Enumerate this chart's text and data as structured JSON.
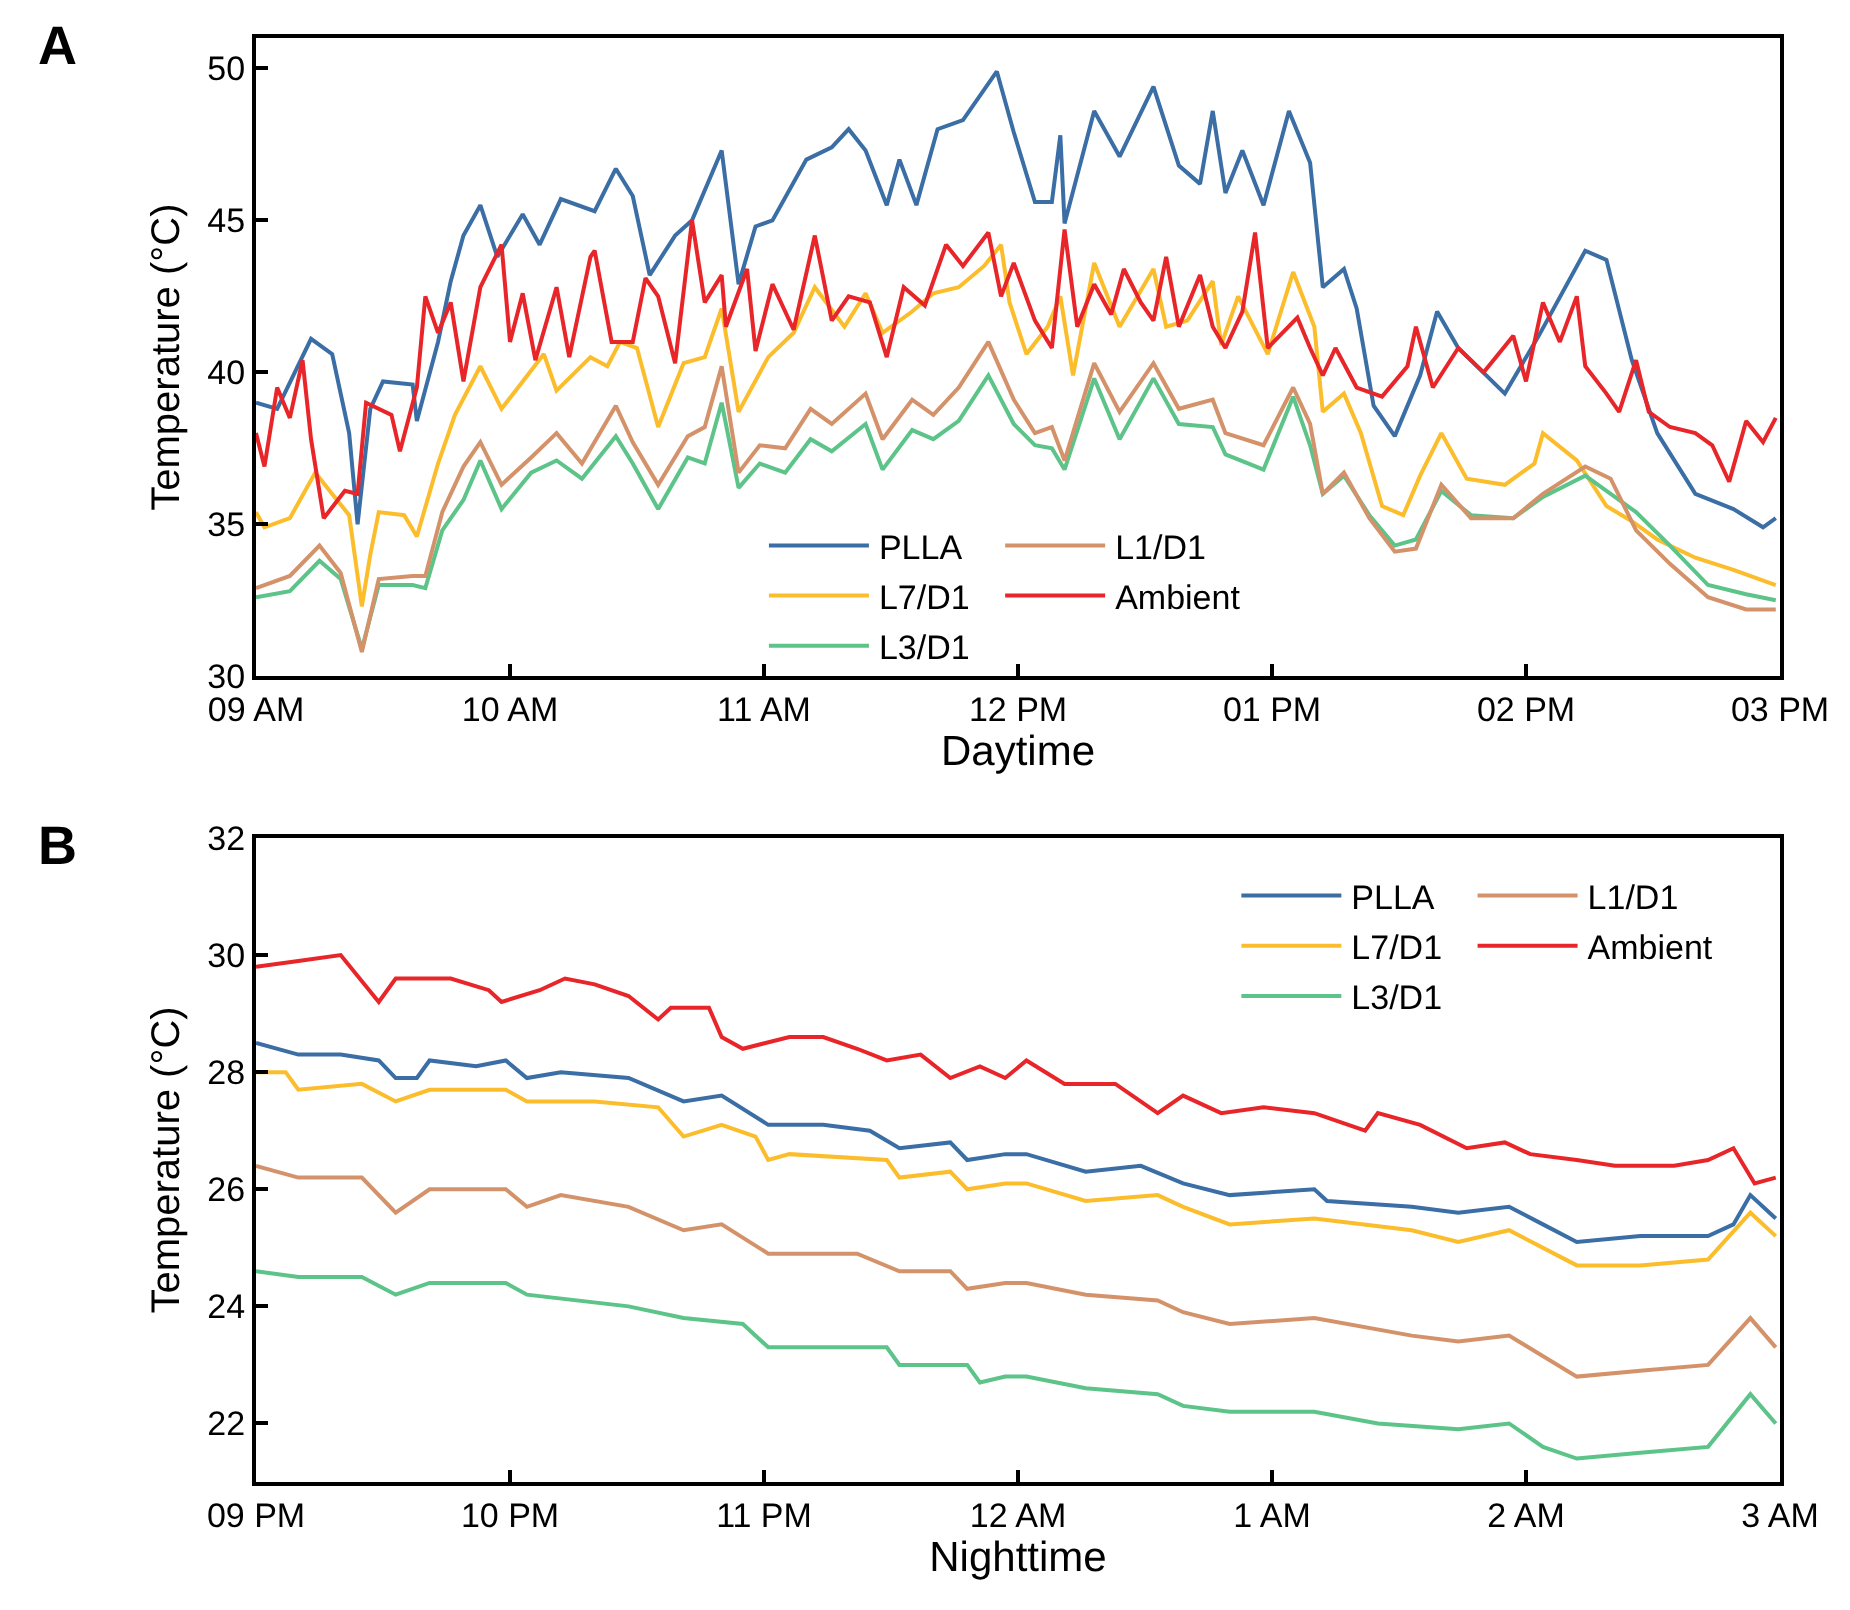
{
  "chart_data": [
    {
      "type": "line",
      "title": "A",
      "xlabel": "Daytime",
      "ylabel": "Temperature (°C)",
      "xlim": [
        "--01-01T09:00",
        "--01-01T15:00"
      ],
      "ylim": [
        30,
        51
      ],
      "xticks": [
        {
          "value": "--01-01T09:00",
          "label": "09 AM"
        },
        {
          "value": "--01-01T10:00",
          "label": "10 AM"
        },
        {
          "value": "--01-01T11:00",
          "label": "11 AM"
        },
        {
          "value": "--01-01T12:00",
          "label": "12 PM"
        },
        {
          "value": "--01-01T13:00",
          "label": "01 PM"
        },
        {
          "value": "--01-01T14:00",
          "label": "02 PM"
        },
        {
          "value": "--01-01T15:00",
          "label": "03 PM"
        }
      ],
      "yticks": [
        30,
        35,
        40,
        45,
        50
      ],
      "legend": "bottom",
      "series": [
        {
          "name": "PLLA",
          "color": "#3a6ea5",
          "x": [
            "--01-01T09:00",
            "--01-01T09:05",
            "--01-01T09:13",
            "--01-01T09:18",
            "--01-01T09:22",
            "--01-01T09:24",
            "--01-01T09:27",
            "--01-01T09:30",
            "--01-01T09:37",
            "--01-01T09:38",
            "--01-01T09:43",
            "--01-01T09:46",
            "--01-01T09:49",
            "--01-01T09:53",
            "--01-01T09:57",
            "--01-01T10:03",
            "--01-01T10:07",
            "--01-01T10:12",
            "--01-01T10:20",
            "--01-01T10:25",
            "--01-01T10:29",
            "--01-01T10:33",
            "--01-01T10:39",
            "--01-01T10:43",
            "--01-01T10:50",
            "--01-01T10:54",
            "--01-01T10:58",
            "--01-01T11:02",
            "--01-01T11:10",
            "--01-01T11:16",
            "--01-01T11:20",
            "--01-01T11:24",
            "--01-01T11:29",
            "--01-01T11:32",
            "--01-01T11:36",
            "--01-01T11:41",
            "--01-01T11:47",
            "--01-01T11:55",
            "--01-01T11:59",
            "--01-01T12:04",
            "--01-01T12:08",
            "--01-01T12:10",
            "--01-01T12:11",
            "--01-01T12:18",
            "--01-01T12:24",
            "--01-01T12:32",
            "--01-01T12:38",
            "--01-01T12:43",
            "--01-01T12:46",
            "--01-01T12:49",
            "--01-01T12:53",
            "--01-01T12:58",
            "--01-01T13:04",
            "--01-01T13:09",
            "--01-01T13:12",
            "--01-01T13:17",
            "--01-01T13:20",
            "--01-01T13:24",
            "--01-01T13:29",
            "--01-01T13:35",
            "--01-01T13:39",
            "--01-01T13:44",
            "--01-01T13:55",
            "--01-01T14:03",
            "--01-01T14:14",
            "--01-01T14:19",
            "--01-01T14:25",
            "--01-01T14:31",
            "--01-01T14:40",
            "--01-01T14:49",
            "--01-01T14:56",
            "--01-01T14:59"
          ],
          "values": [
            39.0,
            38.8,
            41.1,
            40.6,
            38.0,
            35.0,
            38.8,
            39.7,
            39.6,
            38.4,
            41.0,
            43.0,
            44.5,
            45.5,
            43.8,
            45.2,
            44.2,
            45.7,
            45.3,
            46.7,
            45.8,
            43.2,
            44.5,
            45.0,
            47.3,
            42.9,
            44.8,
            45.0,
            47.0,
            47.4,
            48.0,
            47.3,
            45.5,
            47.0,
            45.5,
            48.0,
            48.3,
            49.9,
            47.9,
            45.6,
            45.6,
            47.8,
            44.9,
            48.6,
            47.1,
            49.4,
            46.8,
            46.2,
            48.6,
            45.9,
            47.3,
            45.5,
            48.6,
            46.9,
            42.8,
            43.4,
            42.1,
            38.9,
            37.9,
            39.9,
            42.0,
            40.8,
            39.3,
            41.2,
            44.0,
            43.7,
            40.4,
            38.0,
            36.0,
            35.5,
            34.9,
            35.2
          ]
        },
        {
          "name": "L7/D1",
          "color": "#fbbd2b",
          "x": [
            "--01-01T09:00",
            "--01-01T09:02",
            "--01-01T09:08",
            "--01-01T09:14",
            "--01-01T09:18",
            "--01-01T09:22",
            "--01-01T09:25",
            "--01-01T09:27",
            "--01-01T09:29",
            "--01-01T09:35",
            "--01-01T09:38",
            "--01-01T09:43",
            "--01-01T09:47",
            "--01-01T09:53",
            "--01-01T09:58",
            "--01-01T10:03",
            "--01-01T10:08",
            "--01-01T10:11",
            "--01-01T10:19",
            "--01-01T10:23",
            "--01-01T10:26",
            "--01-01T10:30",
            "--01-01T10:35",
            "--01-01T10:41",
            "--01-01T10:46",
            "--01-01T10:50",
            "--01-01T10:54",
            "--01-01T11:01",
            "--01-01T11:07",
            "--01-01T11:12",
            "--01-01T11:19",
            "--01-01T11:24",
            "--01-01T11:28",
            "--01-01T11:35",
            "--01-01T11:40",
            "--01-01T11:46",
            "--01-01T11:52",
            "--01-01T11:56",
            "--01-01T11:58",
            "--01-01T12:02",
            "--01-01T12:07",
            "--01-01T12:10",
            "--01-01T12:13",
            "--01-01T12:18",
            "--01-01T12:24",
            "--01-01T12:32",
            "--01-01T12:35",
            "--01-01T12:40",
            "--01-01T12:46",
            "--01-01T12:48",
            "--01-01T12:52",
            "--01-01T12:59",
            "--01-01T13:05",
            "--01-01T13:10",
            "--01-01T13:12",
            "--01-01T13:17",
            "--01-01T13:21",
            "--01-01T13:26",
            "--01-01T13:31",
            "--01-01T13:35",
            "--01-01T13:40",
            "--01-01T13:46",
            "--01-01T13:55",
            "--01-01T14:02",
            "--01-01T14:04",
            "--01-01T14:12",
            "--01-01T14:19",
            "--01-01T14:25",
            "--01-01T14:31",
            "--01-01T14:40",
            "--01-01T14:49",
            "--01-01T14:59"
          ],
          "values": [
            35.4,
            34.9,
            35.2,
            36.7,
            36.0,
            35.3,
            32.3,
            34.0,
            35.4,
            35.3,
            34.6,
            37.0,
            38.6,
            40.2,
            38.8,
            39.7,
            40.6,
            39.4,
            40.5,
            40.2,
            41.0,
            40.8,
            38.2,
            40.3,
            40.5,
            42.1,
            38.7,
            40.5,
            41.3,
            42.8,
            41.5,
            42.6,
            41.3,
            42.0,
            42.6,
            42.8,
            43.5,
            44.2,
            42.3,
            40.6,
            41.5,
            42.5,
            39.9,
            43.6,
            41.5,
            43.4,
            41.5,
            41.7,
            43.0,
            40.9,
            42.5,
            40.6,
            43.3,
            41.5,
            38.7,
            39.3,
            38.0,
            35.6,
            35.3,
            36.6,
            38.0,
            36.5,
            36.3,
            37.0,
            38.0,
            37.1,
            35.6,
            35.1,
            34.5,
            33.9,
            33.5,
            33.0
          ]
        },
        {
          "name": "L3/D1",
          "color": "#5cc389",
          "x": [
            "--01-01T09:00",
            "--01-01T09:08",
            "--01-01T09:15",
            "--01-01T09:20",
            "--01-01T09:25",
            "--01-01T09:29",
            "--01-01T09:37",
            "--01-01T09:40",
            "--01-01T09:44",
            "--01-01T09:49",
            "--01-01T09:53",
            "--01-01T09:58",
            "--01-01T10:05",
            "--01-01T10:11",
            "--01-01T10:17",
            "--01-01T10:25",
            "--01-01T10:29",
            "--01-01T10:35",
            "--01-01T10:42",
            "--01-01T10:46",
            "--01-01T10:50",
            "--01-01T10:54",
            "--01-01T10:59",
            "--01-01T11:05",
            "--01-01T11:11",
            "--01-01T11:16",
            "--01-01T11:24",
            "--01-01T11:28",
            "--01-01T11:35",
            "--01-01T11:40",
            "--01-01T11:46",
            "--01-01T11:53",
            "--01-01T11:59",
            "--01-01T12:04",
            "--01-01T12:08",
            "--01-01T12:11",
            "--01-01T12:18",
            "--01-01T12:24",
            "--01-01T12:32",
            "--01-01T12:38",
            "--01-01T12:46",
            "--01-01T12:49",
            "--01-01T12:58",
            "--01-01T13:05",
            "--01-01T13:09",
            "--01-01T13:12",
            "--01-01T13:17",
            "--01-01T13:23",
            "--01-01T13:29",
            "--01-01T13:34",
            "--01-01T13:40",
            "--01-01T13:47",
            "--01-01T13:57",
            "--01-01T14:04",
            "--01-01T14:14",
            "--01-01T14:20",
            "--01-01T14:26",
            "--01-01T14:34",
            "--01-01T14:43",
            "--01-01T14:52",
            "--01-01T14:59"
          ],
          "values": [
            32.6,
            32.8,
            33.8,
            33.2,
            30.9,
            33.0,
            33.0,
            32.9,
            34.8,
            35.8,
            37.1,
            35.5,
            36.7,
            37.1,
            36.5,
            37.9,
            37.0,
            35.5,
            37.2,
            37.0,
            39.0,
            36.2,
            37.0,
            36.7,
            37.8,
            37.4,
            38.3,
            36.8,
            38.1,
            37.8,
            38.4,
            39.9,
            38.3,
            37.6,
            37.5,
            36.8,
            39.8,
            37.8,
            39.8,
            38.3,
            38.2,
            37.3,
            36.8,
            39.2,
            37.6,
            36.0,
            36.6,
            35.3,
            34.3,
            34.5,
            36.1,
            35.3,
            35.2,
            35.9,
            36.6,
            36.0,
            35.4,
            34.3,
            33.0,
            32.7,
            32.5
          ]
        },
        {
          "name": "L1/D1",
          "color": "#d4926a",
          "x": [
            "--01-01T09:00",
            "--01-01T09:08",
            "--01-01T09:15",
            "--01-01T09:20",
            "--01-01T09:25",
            "--01-01T09:29",
            "--01-01T09:37",
            "--01-01T09:40",
            "--01-01T09:44",
            "--01-01T09:49",
            "--01-01T09:53",
            "--01-01T09:58",
            "--01-01T10:05",
            "--01-01T10:11",
            "--01-01T10:17",
            "--01-01T10:25",
            "--01-01T10:29",
            "--01-01T10:35",
            "--01-01T10:42",
            "--01-01T10:46",
            "--01-01T10:50",
            "--01-01T10:54",
            "--01-01T10:59",
            "--01-01T11:05",
            "--01-01T11:11",
            "--01-01T11:16",
            "--01-01T11:24",
            "--01-01T11:28",
            "--01-01T11:35",
            "--01-01T11:40",
            "--01-01T11:46",
            "--01-01T11:53",
            "--01-01T11:59",
            "--01-01T12:04",
            "--01-01T12:08",
            "--01-01T12:11",
            "--01-01T12:18",
            "--01-01T12:24",
            "--01-01T12:32",
            "--01-01T12:38",
            "--01-01T12:46",
            "--01-01T12:49",
            "--01-01T12:58",
            "--01-01T13:05",
            "--01-01T13:09",
            "--01-01T13:12",
            "--01-01T13:17",
            "--01-01T13:23",
            "--01-01T13:29",
            "--01-01T13:34",
            "--01-01T13:40",
            "--01-01T13:47",
            "--01-01T13:57",
            "--01-01T14:04",
            "--01-01T14:14",
            "--01-01T14:20",
            "--01-01T14:26",
            "--01-01T14:34",
            "--01-01T14:43",
            "--01-01T14:52",
            "--01-01T14:59"
          ],
          "values": [
            32.9,
            33.3,
            34.3,
            33.4,
            30.8,
            33.2,
            33.3,
            33.3,
            35.4,
            36.9,
            37.7,
            36.3,
            37.2,
            38.0,
            37.0,
            38.9,
            37.7,
            36.3,
            37.9,
            38.2,
            40.2,
            36.7,
            37.6,
            37.5,
            38.8,
            38.3,
            39.3,
            37.8,
            39.1,
            38.6,
            39.5,
            41.0,
            39.1,
            38.0,
            38.2,
            37.1,
            40.3,
            38.7,
            40.3,
            38.8,
            39.1,
            38.0,
            37.6,
            39.5,
            38.3,
            36.0,
            36.7,
            35.2,
            34.1,
            34.2,
            36.3,
            35.2,
            35.2,
            36.0,
            36.9,
            36.5,
            34.8,
            33.7,
            32.6,
            32.2,
            32.2
          ]
        },
        {
          "name": "Ambient",
          "color": "#e8262a",
          "x": [
            "--01-01T09:00",
            "--01-01T09:02",
            "--01-01T09:05",
            "--01-01T09:08",
            "--01-01T09:11",
            "--01-01T09:13",
            "--01-01T09:16",
            "--01-01T09:21",
            "--01-01T09:24",
            "--01-01T09:26",
            "--01-01T09:32",
            "--01-01T09:34",
            "--01-01T09:38",
            "--01-01T09:40",
            "--01-01T09:43",
            "--01-01T09:46",
            "--01-01T09:49",
            "--01-01T09:53",
            "--01-01T09:58",
            "--01-01T10:00",
            "--01-01T10:03",
            "--01-01T10:06",
            "--01-01T10:11",
            "--01-01T10:14",
            "--01-01T10:19",
            "--01-01T10:20",
            "--01-01T10:24",
            "--01-01T10:29",
            "--01-01T10:32",
            "--01-01T10:35",
            "--01-01T10:39",
            "--01-01T10:43",
            "--01-01T10:46",
            "--01-01T10:50",
            "--01-01T10:51",
            "--01-01T10:56",
            "--01-01T10:58",
            "--01-01T11:02",
            "--01-01T11:07",
            "--01-01T11:12",
            "--01-01T11:16",
            "--01-01T11:20",
            "--01-01T11:25",
            "--01-01T11:29",
            "--01-01T11:33",
            "--01-01T11:38",
            "--01-01T11:43",
            "--01-01T11:47",
            "--01-01T11:53",
            "--01-01T11:56",
            "--01-01T11:59",
            "--01-01T12:04",
            "--01-01T12:08",
            "--01-01T12:11",
            "--01-01T12:14",
            "--01-01T12:18",
            "--01-01T12:22",
            "--01-01T12:25",
            "--01-01T12:29",
            "--01-01T12:32",
            "--01-01T12:35",
            "--01-01T12:38",
            "--01-01T12:43",
            "--01-01T12:46",
            "--01-01T12:49",
            "--01-01T12:53",
            "--01-01T12:56",
            "--01-01T12:59",
            "--01-01T13:06",
            "--01-01T13:09",
            "--01-01T13:12",
            "--01-01T13:15",
            "--01-01T13:20",
            "--01-01T13:26",
            "--01-01T13:32",
            "--01-01T13:34",
            "--01-01T13:38",
            "--01-01T13:44",
            "--01-01T13:50",
            "--01-01T13:57",
            "--01-01T14:00",
            "--01-01T14:04",
            "--01-01T14:08",
            "--01-01T14:12",
            "--01-01T14:14",
            "--01-01T14:19",
            "--01-01T14:22",
            "--01-01T14:26",
            "--01-01T14:29",
            "--01-01T14:34",
            "--01-01T14:40",
            "--01-01T14:44",
            "--01-01T14:48",
            "--01-01T14:52",
            "--01-01T14:56",
            "--01-01T14:59"
          ],
          "values": [
            38.0,
            36.9,
            39.5,
            38.5,
            40.4,
            37.8,
            35.2,
            36.1,
            36.0,
            39.0,
            38.6,
            37.4,
            39.5,
            42.5,
            41.3,
            42.3,
            39.7,
            42.8,
            44.2,
            41.0,
            42.6,
            40.4,
            42.8,
            40.5,
            43.8,
            44.0,
            41.0,
            41.0,
            43.1,
            42.5,
            40.3,
            45.0,
            42.3,
            43.2,
            41.5,
            43.4,
            40.7,
            42.9,
            41.4,
            44.5,
            41.7,
            42.5,
            42.3,
            40.5,
            42.8,
            42.2,
            44.2,
            43.5,
            44.6,
            42.5,
            43.6,
            41.7,
            40.8,
            44.7,
            41.5,
            42.9,
            41.9,
            43.4,
            42.3,
            41.7,
            43.8,
            41.5,
            43.2,
            41.5,
            40.8,
            42.0,
            44.6,
            40.8,
            41.8,
            40.8,
            39.9,
            40.8,
            39.5,
            39.2,
            40.2,
            41.5,
            39.5,
            40.8,
            40.0,
            41.2,
            39.7,
            42.3,
            41.0,
            42.5,
            40.2,
            39.3,
            38.7,
            40.4,
            38.7,
            38.2,
            38.0,
            37.6,
            36.4,
            38.4,
            37.7,
            38.5
          ]
        }
      ]
    },
    {
      "type": "line",
      "title": "B",
      "xlabel": "Nighttime",
      "ylabel": "Temperature (°C)",
      "xlim": [
        "--01-01T21:00",
        "--01-02T03:00"
      ],
      "ylim": [
        21,
        32
      ],
      "xticks": [
        {
          "value": "--01-01T21:00",
          "label": "09 PM"
        },
        {
          "value": "--01-01T22:00",
          "label": "10 PM"
        },
        {
          "value": "--01-01T23:00",
          "label": "11 PM"
        },
        {
          "value": "--01-02T00:00",
          "label": "12 AM"
        },
        {
          "value": "--01-02T01:00",
          "label": "1 AM"
        },
        {
          "value": "--01-02T02:00",
          "label": "2 AM"
        },
        {
          "value": "--01-02T03:00",
          "label": "3 AM"
        }
      ],
      "yticks": [
        22,
        24,
        26,
        28,
        30,
        32
      ],
      "legend": "top right",
      "series": [
        {
          "name": "PLLA",
          "color": "#3a6ea5",
          "x": [
            "--01-01T21:00",
            "--01-01T21:10",
            "--01-01T21:20",
            "--01-01T21:29",
            "--01-01T21:33",
            "--01-01T21:38",
            "--01-01T21:41",
            "--01-01T21:52",
            "--01-01T21:59",
            "--01-01T22:04",
            "--01-01T22:12",
            "--01-01T22:28",
            "--01-01T22:41",
            "--01-01T22:50",
            "--01-01T23:01",
            "--01-01T23:14",
            "--01-01T23:25",
            "--01-01T23:32",
            "--01-01T23:44",
            "--01-01T23:48",
            "--01-01T23:57",
            "--01-02T00:02",
            "--01-02T00:16",
            "--01-02T00:29",
            "--01-02T00:39",
            "--01-02T00:50",
            "--01-02T01:10",
            "--01-02T01:13",
            "--01-02T01:33",
            "--01-02T01:44",
            "--01-02T01:56",
            "--01-02T02:04",
            "--01-02T02:12",
            "--01-02T02:27",
            "--01-02T02:43",
            "--01-02T02:49",
            "--01-02T02:53",
            "--01-02T02:59"
          ],
          "values": [
            28.5,
            28.3,
            28.3,
            28.2,
            27.9,
            27.9,
            28.2,
            28.1,
            28.2,
            27.9,
            28.0,
            27.9,
            27.5,
            27.6,
            27.1,
            27.1,
            27.0,
            26.7,
            26.8,
            26.5,
            26.6,
            26.6,
            26.3,
            26.4,
            26.1,
            25.9,
            26.0,
            25.8,
            25.7,
            25.6,
            25.7,
            25.4,
            25.1,
            25.2,
            25.2,
            25.4,
            25.9,
            25.5
          ]
        },
        {
          "name": "L7/D1",
          "color": "#fbbd2b",
          "x": [
            "--01-01T21:00",
            "--01-01T21:07",
            "--01-01T21:10",
            "--01-01T21:25",
            "--01-01T21:33",
            "--01-01T21:41",
            "--01-01T21:59",
            "--01-01T22:04",
            "--01-01T22:20",
            "--01-01T22:35",
            "--01-01T22:41",
            "--01-01T22:50",
            "--01-01T22:58",
            "--01-01T23:01",
            "--01-01T23:06",
            "--01-01T23:29",
            "--01-01T23:32",
            "--01-01T23:44",
            "--01-01T23:48",
            "--01-01T23:57",
            "--01-02T00:02",
            "--01-02T00:16",
            "--01-02T00:33",
            "--01-02T00:39",
            "--01-02T00:50",
            "--01-02T01:10",
            "--01-02T01:33",
            "--01-02T01:44",
            "--01-02T01:56",
            "--01-02T02:12",
            "--01-02T02:27",
            "--01-02T02:43",
            "--01-02T02:53",
            "--01-02T02:59"
          ],
          "values": [
            28.0,
            28.0,
            27.7,
            27.8,
            27.5,
            27.7,
            27.7,
            27.5,
            27.5,
            27.4,
            26.9,
            27.1,
            26.9,
            26.5,
            26.6,
            26.5,
            26.2,
            26.3,
            26.0,
            26.1,
            26.1,
            25.8,
            25.9,
            25.7,
            25.4,
            25.5,
            25.3,
            25.1,
            25.3,
            24.7,
            24.7,
            24.8,
            25.6,
            25.2
          ]
        },
        {
          "name": "L3/D1",
          "color": "#5cc389",
          "x": [
            "--01-01T21:00",
            "--01-01T21:10",
            "--01-01T21:25",
            "--01-01T21:33",
            "--01-01T21:41",
            "--01-01T21:59",
            "--01-01T22:04",
            "--01-01T22:28",
            "--01-01T22:41",
            "--01-01T22:55",
            "--01-01T23:01",
            "--01-01T23:29",
            "--01-01T23:32",
            "--01-01T23:48",
            "--01-01T23:51",
            "--01-01T23:57",
            "--01-02T00:02",
            "--01-02T00:16",
            "--01-02T00:33",
            "--01-02T00:39",
            "--01-02T00:50",
            "--01-02T01:10",
            "--01-02T01:25",
            "--01-02T01:44",
            "--01-02T01:56",
            "--01-02T02:04",
            "--01-02T02:12",
            "--01-02T02:27",
            "--01-02T02:43",
            "--01-02T02:53",
            "--01-02T02:59"
          ],
          "values": [
            24.6,
            24.5,
            24.5,
            24.2,
            24.4,
            24.4,
            24.2,
            24.0,
            23.8,
            23.7,
            23.3,
            23.3,
            23.0,
            23.0,
            22.7,
            22.8,
            22.8,
            22.6,
            22.5,
            22.3,
            22.2,
            22.2,
            22.0,
            21.9,
            22.0,
            21.6,
            21.4,
            21.5,
            21.6,
            22.5,
            22.0
          ]
        },
        {
          "name": "L1/D1",
          "color": "#d4926a",
          "x": [
            "--01-01T21:00",
            "--01-01T21:10",
            "--01-01T21:25",
            "--01-01T21:33",
            "--01-01T21:41",
            "--01-01T21:59",
            "--01-01T22:04",
            "--01-01T22:12",
            "--01-01T22:28",
            "--01-01T22:41",
            "--01-01T22:50",
            "--01-01T23:01",
            "--01-01T23:22",
            "--01-01T23:32",
            "--01-01T23:44",
            "--01-01T23:48",
            "--01-01T23:57",
            "--01-02T00:02",
            "--01-02T00:16",
            "--01-02T00:33",
            "--01-02T00:39",
            "--01-02T00:50",
            "--01-02T01:10",
            "--01-02T01:33",
            "--01-02T01:44",
            "--01-02T01:56",
            "--01-02T02:12",
            "--01-02T02:27",
            "--01-02T02:43",
            "--01-02T02:53",
            "--01-02T02:59"
          ],
          "values": [
            26.4,
            26.2,
            26.2,
            25.6,
            26.0,
            26.0,
            25.7,
            25.9,
            25.7,
            25.3,
            25.4,
            24.9,
            24.9,
            24.6,
            24.6,
            24.3,
            24.4,
            24.4,
            24.2,
            24.1,
            23.9,
            23.7,
            23.8,
            23.5,
            23.4,
            23.5,
            22.8,
            22.9,
            23.0,
            23.8,
            23.3
          ]
        },
        {
          "name": "Ambient",
          "color": "#e8262a",
          "x": [
            "--01-01T21:00",
            "--01-01T21:10",
            "--01-01T21:20",
            "--01-01T21:29",
            "--01-01T21:33",
            "--01-01T21:46",
            "--01-01T21:55",
            "--01-01T21:58",
            "--01-01T22:07",
            "--01-01T22:13",
            "--01-01T22:20",
            "--01-01T22:28",
            "--01-01T22:35",
            "--01-01T22:38",
            "--01-01T22:47",
            "--01-01T22:50",
            "--01-01T22:55",
            "--01-01T23:06",
            "--01-01T23:14",
            "--01-01T23:22",
            "--01-01T23:29",
            "--01-01T23:37",
            "--01-01T23:44",
            "--01-01T23:51",
            "--01-01T23:57",
            "--01-02T00:02",
            "--01-02T00:11",
            "--01-02T00:23",
            "--01-02T00:33",
            "--01-02T00:39",
            "--01-02T00:48",
            "--01-02T00:58",
            "--01-02T01:10",
            "--01-02T01:22",
            "--01-02T01:25",
            "--01-02T01:35",
            "--01-02T01:46",
            "--01-02T01:55",
            "--01-02T02:01",
            "--01-02T02:12",
            "--01-02T02:21",
            "--01-02T02:35",
            "--01-02T02:43",
            "--01-02T02:49",
            "--01-02T02:54",
            "--01-02T02:59"
          ],
          "values": [
            29.8,
            29.9,
            30.0,
            29.2,
            29.6,
            29.6,
            29.4,
            29.2,
            29.4,
            29.6,
            29.5,
            29.3,
            28.9,
            29.1,
            29.1,
            28.6,
            28.4,
            28.6,
            28.6,
            28.4,
            28.2,
            28.3,
            27.9,
            28.1,
            27.9,
            28.2,
            27.8,
            27.8,
            27.3,
            27.6,
            27.3,
            27.4,
            27.3,
            27.0,
            27.3,
            27.1,
            26.7,
            26.8,
            26.6,
            26.5,
            26.4,
            26.4,
            26.5,
            26.7,
            26.1,
            26.2
          ]
        }
      ]
    }
  ]
}
